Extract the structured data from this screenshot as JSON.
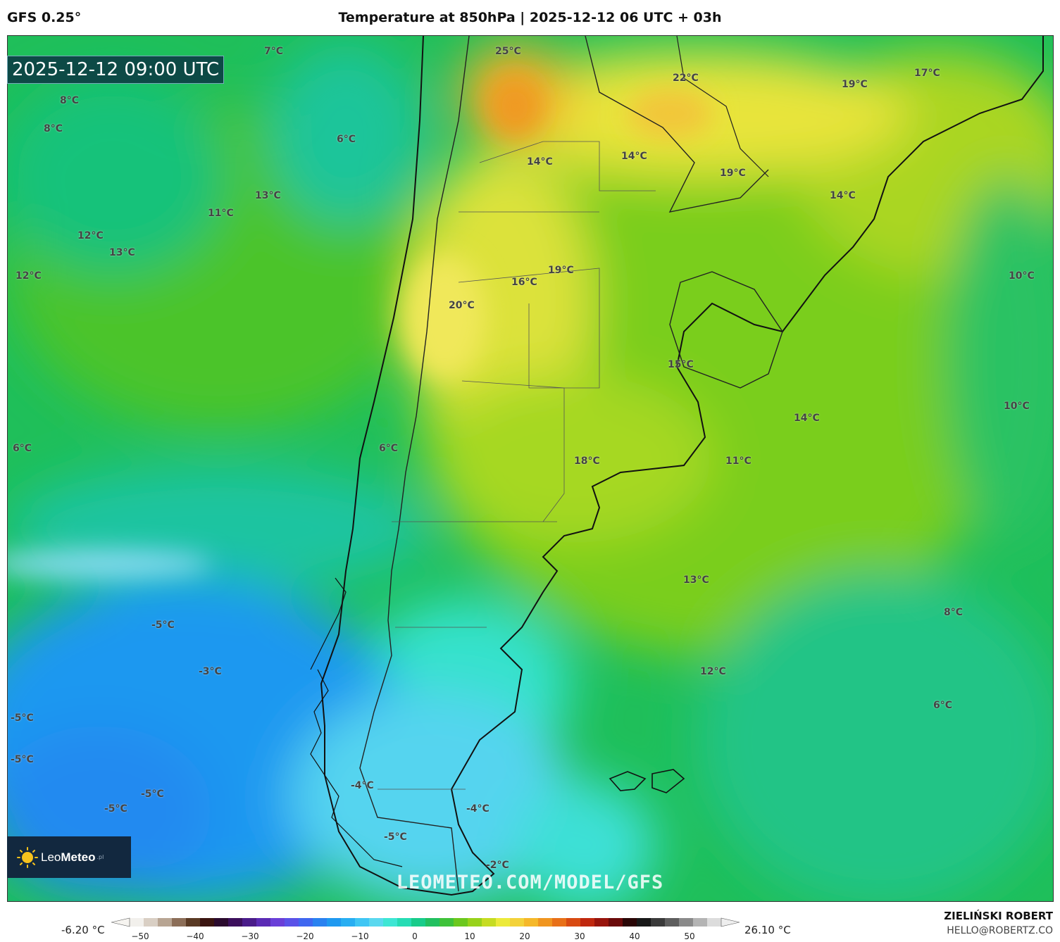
{
  "header": {
    "model": "GFS 0.25°",
    "title": "Temperature at 850hPa | 2025-12-12 06 UTC + 03h"
  },
  "map": {
    "timestamp": "2025-12-12 09:00 UTC",
    "temperature_labels": [
      {
        "text": "7°C"
      },
      {
        "text": "25°C"
      },
      {
        "text": "22°C"
      },
      {
        "text": "17°C"
      },
      {
        "text": "19°C"
      },
      {
        "text": "8°C"
      },
      {
        "text": "8°C"
      },
      {
        "text": "6°C"
      },
      {
        "text": "14°C"
      },
      {
        "text": "14°C"
      },
      {
        "text": "19°C"
      },
      {
        "text": "14°C"
      },
      {
        "text": "13°C"
      },
      {
        "text": "11°C"
      },
      {
        "text": "12°C"
      },
      {
        "text": "13°C"
      },
      {
        "text": "12°C"
      },
      {
        "text": "19°C"
      },
      {
        "text": "16°C"
      },
      {
        "text": "10°C"
      },
      {
        "text": "20°C"
      },
      {
        "text": "15°C"
      },
      {
        "text": "14°C"
      },
      {
        "text": "10°C"
      },
      {
        "text": "6°C"
      },
      {
        "text": "6°C"
      },
      {
        "text": "18°C"
      },
      {
        "text": "11°C"
      },
      {
        "text": "13°C"
      },
      {
        "text": "8°C"
      },
      {
        "text": "-5°C"
      },
      {
        "text": "-3°C"
      },
      {
        "text": "12°C"
      },
      {
        "text": "6°C"
      },
      {
        "text": "-5°C"
      },
      {
        "text": "-5°C"
      },
      {
        "text": "-4°C"
      },
      {
        "text": "-5°C"
      },
      {
        "text": "-5°C"
      },
      {
        "text": "-4°C"
      },
      {
        "text": "-5°C"
      },
      {
        "text": "-2°C"
      }
    ]
  },
  "branding": {
    "logo_text_light": "Leo",
    "logo_text_bold": "Meteo",
    "logo_suffix": ".pl",
    "watermark": "LEOMETEO.COM/MODEL/GFS"
  },
  "colorbar": {
    "min_label": "-6.20 °C",
    "max_label": "26.10 °C",
    "ticks": [
      "−50",
      "−40",
      "−30",
      "−20",
      "−10",
      "0",
      "10",
      "20",
      "30",
      "40",
      "50"
    ],
    "colors": [
      "#f2f0ec",
      "#d9cfc4",
      "#b8a593",
      "#8c6e58",
      "#5a3a24",
      "#3a1410",
      "#2b0a2e",
      "#3c0f5c",
      "#4a1c8a",
      "#5b2bb5",
      "#6a3fd8",
      "#5a52e8",
      "#3f67f0",
      "#2a82f0",
      "#1f99f0",
      "#28aef2",
      "#3fc6f4",
      "#5ad8ef",
      "#3ee6d4",
      "#26dcb4",
      "#18cc8a",
      "#22c060",
      "#3fc23a",
      "#6cc81e",
      "#98d21a",
      "#c6dc22",
      "#ecea3a",
      "#f3d23a",
      "#f5b82a",
      "#f09520",
      "#e87018",
      "#d84a12",
      "#c0280e",
      "#98140c",
      "#6a0a0a",
      "#2a0606",
      "#181818",
      "#3a3a3a",
      "#5e5e5e",
      "#8a8a8a",
      "#b4b4b4",
      "#dcdcdc"
    ]
  },
  "author": {
    "name": "ZIELIŃSKI ROBERT",
    "email": "HELLO@ROBERTZ.CO"
  }
}
